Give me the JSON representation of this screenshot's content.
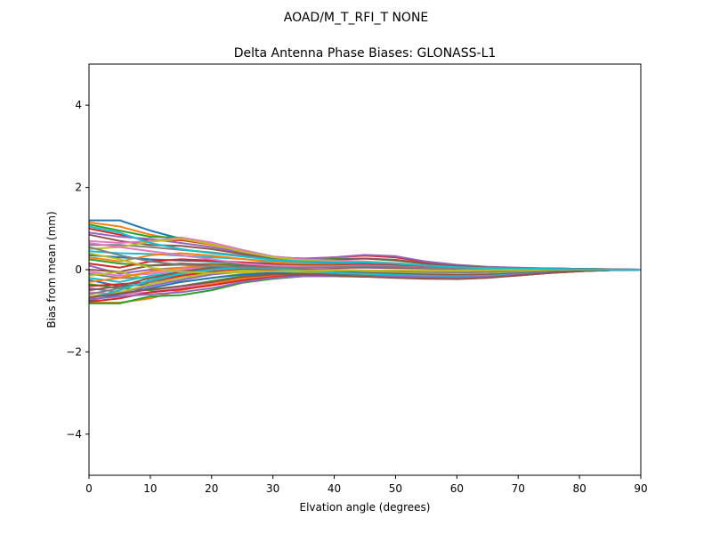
{
  "suptitle": "AOAD/M_T_RFI_T  NONE",
  "chart_data": {
    "type": "line",
    "title": "Delta Antenna Phase Biases: GLONASS-L1",
    "xlabel": "Elvation angle (degrees)",
    "ylabel": "Bias from mean (mm)",
    "xlim": [
      0,
      90
    ],
    "ylim": [
      -5,
      5
    ],
    "xticks": [
      0,
      10,
      20,
      30,
      40,
      50,
      60,
      70,
      80,
      90
    ],
    "yticks": [
      -4,
      -2,
      0,
      2,
      4
    ],
    "xtick_labels": [
      "0",
      "10",
      "20",
      "30",
      "40",
      "50",
      "60",
      "70",
      "80",
      "90"
    ],
    "ytick_labels": [
      "−4",
      "−2",
      "0",
      "2",
      "4"
    ],
    "grid": false,
    "x": [
      0,
      5,
      10,
      15,
      20,
      25,
      30,
      35,
      40,
      45,
      50,
      55,
      60,
      65,
      70,
      75,
      80,
      85,
      90
    ],
    "colors": [
      "#1f77b4",
      "#ff7f0e",
      "#2ca02c",
      "#d62728",
      "#9467bd",
      "#8c564b",
      "#e377c2",
      "#7f7f7f",
      "#bcbd22",
      "#17becf"
    ],
    "series": [
      {
        "values": [
          1.2,
          1.2,
          0.95,
          0.75,
          0.62,
          0.45,
          0.3,
          0.22,
          0.18,
          0.16,
          0.12,
          0.08,
          0.05,
          0.03,
          0.02,
          0.01,
          0.01,
          0.0,
          0.0
        ]
      },
      {
        "values": [
          1.15,
          1.05,
          0.85,
          0.72,
          0.6,
          0.45,
          0.3,
          0.24,
          0.2,
          0.18,
          0.14,
          0.09,
          0.06,
          0.04,
          0.03,
          0.02,
          0.01,
          0.0,
          0.0
        ]
      },
      {
        "values": [
          1.1,
          0.95,
          0.8,
          0.78,
          0.65,
          0.48,
          0.32,
          0.26,
          0.26,
          0.27,
          0.22,
          0.14,
          0.08,
          0.05,
          0.04,
          0.03,
          0.02,
          0.01,
          0.0
        ]
      },
      {
        "values": [
          1.0,
          0.85,
          0.7,
          0.72,
          0.62,
          0.46,
          0.3,
          0.27,
          0.3,
          0.34,
          0.3,
          0.18,
          0.1,
          0.06,
          0.04,
          0.03,
          0.02,
          0.01,
          0.0
        ]
      },
      {
        "values": [
          0.9,
          0.8,
          0.75,
          0.65,
          0.55,
          0.42,
          0.28,
          0.26,
          0.3,
          0.36,
          0.33,
          0.2,
          0.12,
          0.07,
          0.05,
          0.03,
          0.02,
          0.01,
          0.0
        ]
      },
      {
        "values": [
          0.85,
          0.7,
          0.6,
          0.58,
          0.5,
          0.38,
          0.26,
          0.22,
          0.24,
          0.27,
          0.24,
          0.15,
          0.09,
          0.05,
          0.04,
          0.03,
          0.02,
          0.01,
          0.0
        ]
      },
      {
        "values": [
          0.7,
          0.65,
          0.7,
          0.78,
          0.66,
          0.48,
          0.32,
          0.25,
          0.22,
          0.2,
          0.16,
          0.1,
          0.06,
          0.04,
          0.03,
          0.02,
          0.01,
          0.0,
          0.0
        ]
      },
      {
        "values": [
          0.6,
          0.6,
          0.55,
          0.48,
          0.42,
          0.34,
          0.24,
          0.2,
          0.18,
          0.17,
          0.14,
          0.09,
          0.06,
          0.04,
          0.03,
          0.02,
          0.01,
          0.0,
          0.0
        ]
      },
      {
        "values": [
          0.5,
          0.55,
          0.68,
          0.75,
          0.62,
          0.44,
          0.3,
          0.22,
          0.2,
          0.19,
          0.15,
          0.09,
          0.05,
          0.03,
          0.02,
          0.01,
          0.01,
          0.0,
          0.0
        ]
      },
      {
        "values": [
          0.45,
          0.4,
          0.38,
          0.34,
          0.3,
          0.26,
          0.2,
          0.18,
          0.16,
          0.15,
          0.12,
          0.08,
          0.05,
          0.03,
          0.02,
          0.01,
          0.01,
          0.0,
          0.0
        ]
      },
      {
        "values": [
          0.35,
          0.3,
          0.25,
          0.22,
          0.2,
          0.18,
          0.15,
          0.14,
          0.14,
          0.15,
          0.13,
          0.09,
          0.06,
          0.04,
          0.03,
          0.02,
          0.01,
          0.0,
          0.0
        ]
      },
      {
        "values": [
          0.3,
          0.2,
          0.35,
          0.4,
          0.34,
          0.26,
          0.18,
          0.14,
          0.12,
          0.12,
          0.1,
          0.07,
          0.05,
          0.03,
          0.02,
          0.01,
          0.01,
          0.0,
          0.0
        ]
      },
      {
        "values": [
          0.25,
          0.15,
          0.1,
          0.12,
          0.14,
          0.14,
          0.12,
          0.11,
          0.1,
          0.1,
          0.08,
          0.05,
          0.03,
          0.02,
          0.02,
          0.01,
          0.01,
          0.0,
          0.0
        ]
      },
      {
        "values": [
          0.15,
          0.05,
          0.2,
          0.25,
          0.22,
          0.18,
          0.12,
          0.1,
          0.1,
          0.12,
          0.1,
          0.06,
          0.04,
          0.03,
          0.02,
          0.01,
          0.0,
          0.0,
          0.0
        ]
      },
      {
        "values": [
          0.1,
          -0.1,
          0.0,
          0.05,
          0.08,
          0.1,
          0.08,
          0.06,
          0.05,
          0.05,
          0.04,
          0.03,
          0.02,
          0.01,
          0.01,
          0.0,
          0.0,
          0.0,
          0.0
        ]
      },
      {
        "values": [
          0.0,
          -0.05,
          0.1,
          0.15,
          0.12,
          0.08,
          0.05,
          0.04,
          0.04,
          0.06,
          0.05,
          0.03,
          0.02,
          0.01,
          0.01,
          0.0,
          0.0,
          0.0,
          0.0
        ]
      },
      {
        "values": [
          -0.05,
          -0.15,
          -0.1,
          0.0,
          0.05,
          0.06,
          0.04,
          0.02,
          0.0,
          -0.02,
          -0.03,
          -0.03,
          -0.03,
          -0.02,
          -0.01,
          -0.01,
          0.0,
          0.0,
          0.0
        ]
      },
      {
        "values": [
          -0.1,
          -0.2,
          -0.2,
          -0.1,
          0.0,
          0.04,
          0.02,
          0.0,
          -0.02,
          -0.04,
          -0.06,
          -0.07,
          -0.07,
          -0.06,
          -0.04,
          -0.02,
          -0.01,
          0.0,
          0.0
        ]
      },
      {
        "values": [
          -0.15,
          -0.05,
          -0.25,
          -0.3,
          -0.2,
          -0.1,
          -0.05,
          -0.04,
          -0.05,
          -0.06,
          -0.08,
          -0.1,
          -0.11,
          -0.1,
          -0.07,
          -0.04,
          -0.02,
          -0.01,
          0.0
        ]
      },
      {
        "values": [
          -0.2,
          -0.3,
          -0.15,
          -0.05,
          0.02,
          0.05,
          0.02,
          -0.02,
          -0.05,
          -0.07,
          -0.1,
          -0.12,
          -0.13,
          -0.12,
          -0.08,
          -0.05,
          -0.02,
          -0.01,
          0.0
        ]
      },
      {
        "values": [
          -0.25,
          -0.4,
          -0.35,
          -0.2,
          -0.1,
          -0.05,
          -0.05,
          -0.08,
          -0.1,
          -0.12,
          -0.14,
          -0.16,
          -0.17,
          -0.15,
          -0.11,
          -0.06,
          -0.03,
          -0.01,
          0.0
        ]
      },
      {
        "values": [
          -0.3,
          -0.2,
          -0.05,
          0.05,
          0.1,
          0.08,
          0.02,
          -0.04,
          -0.08,
          -0.1,
          -0.12,
          -0.14,
          -0.15,
          -0.14,
          -0.1,
          -0.06,
          -0.03,
          -0.01,
          0.0
        ]
      },
      {
        "values": [
          -0.35,
          -0.45,
          -0.5,
          -0.4,
          -0.28,
          -0.16,
          -0.1,
          -0.1,
          -0.12,
          -0.14,
          -0.16,
          -0.18,
          -0.19,
          -0.17,
          -0.12,
          -0.07,
          -0.03,
          -0.01,
          0.0
        ]
      },
      {
        "values": [
          -0.4,
          -0.35,
          -0.3,
          -0.15,
          -0.05,
          0.0,
          -0.02,
          -0.06,
          -0.09,
          -0.11,
          -0.13,
          -0.15,
          -0.16,
          -0.15,
          -0.11,
          -0.06,
          -0.03,
          -0.01,
          0.0
        ]
      },
      {
        "values": [
          -0.45,
          -0.55,
          -0.4,
          -0.25,
          -0.12,
          -0.05,
          -0.06,
          -0.1,
          -0.13,
          -0.15,
          -0.17,
          -0.19,
          -0.2,
          -0.18,
          -0.13,
          -0.07,
          -0.03,
          -0.01,
          0.0
        ]
      },
      {
        "values": [
          -0.5,
          -0.4,
          -0.2,
          -0.05,
          0.05,
          0.1,
          0.06,
          0.0,
          -0.04,
          -0.08,
          -0.1,
          -0.12,
          -0.13,
          -0.12,
          -0.09,
          -0.05,
          -0.02,
          -0.01,
          0.0
        ]
      },
      {
        "values": [
          -0.55,
          -0.6,
          -0.55,
          -0.45,
          -0.32,
          -0.2,
          -0.12,
          -0.12,
          -0.14,
          -0.16,
          -0.18,
          -0.2,
          -0.21,
          -0.19,
          -0.14,
          -0.08,
          -0.04,
          -0.01,
          0.0
        ]
      },
      {
        "values": [
          -0.6,
          -0.45,
          -0.3,
          -0.1,
          0.0,
          0.05,
          0.02,
          -0.04,
          -0.08,
          -0.11,
          -0.14,
          -0.16,
          -0.17,
          -0.16,
          -0.12,
          -0.07,
          -0.03,
          -0.01,
          0.0
        ]
      },
      {
        "values": [
          -0.65,
          -0.55,
          -0.35,
          -0.2,
          -0.08,
          -0.02,
          -0.04,
          -0.08,
          -0.11,
          -0.14,
          -0.16,
          -0.18,
          -0.19,
          -0.17,
          -0.13,
          -0.07,
          -0.03,
          -0.01,
          0.0
        ]
      },
      {
        "values": [
          -0.7,
          -0.5,
          -0.25,
          -0.1,
          0.0,
          0.05,
          0.03,
          -0.02,
          -0.07,
          -0.1,
          -0.13,
          -0.15,
          -0.16,
          -0.15,
          -0.11,
          -0.06,
          -0.03,
          -0.01,
          0.0
        ]
      },
      {
        "values": [
          -0.75,
          -0.6,
          -0.45,
          -0.3,
          -0.2,
          -0.12,
          -0.08,
          -0.1,
          -0.12,
          -0.15,
          -0.17,
          -0.19,
          -0.2,
          -0.18,
          -0.13,
          -0.07,
          -0.03,
          -0.01,
          0.0
        ]
      },
      {
        "values": [
          -0.8,
          -0.8,
          -0.7,
          -0.5,
          -0.35,
          -0.22,
          -0.14,
          -0.12,
          -0.14,
          -0.16,
          -0.18,
          -0.2,
          -0.21,
          -0.19,
          -0.14,
          -0.08,
          -0.04,
          -0.01,
          0.0
        ]
      },
      {
        "values": [
          -0.82,
          -0.82,
          -0.65,
          -0.62,
          -0.5,
          -0.32,
          -0.22,
          -0.16,
          -0.16,
          -0.17,
          -0.18,
          -0.19,
          -0.2,
          -0.18,
          -0.13,
          -0.07,
          -0.03,
          -0.01,
          0.0
        ]
      },
      {
        "values": [
          -0.78,
          -0.7,
          -0.55,
          -0.48,
          -0.38,
          -0.26,
          -0.18,
          -0.15,
          -0.15,
          -0.17,
          -0.19,
          -0.21,
          -0.22,
          -0.19,
          -0.14,
          -0.08,
          -0.04,
          -0.01,
          0.0
        ]
      },
      {
        "values": [
          -0.72,
          -0.65,
          -0.6,
          -0.55,
          -0.45,
          -0.3,
          -0.2,
          -0.16,
          -0.15,
          -0.16,
          -0.17,
          -0.18,
          -0.19,
          -0.17,
          -0.12,
          -0.07,
          -0.03,
          -0.01,
          0.0
        ]
      },
      {
        "values": [
          -0.68,
          -0.58,
          -0.48,
          -0.4,
          -0.3,
          -0.18,
          -0.12,
          -0.12,
          -0.14,
          -0.17,
          -0.2,
          -0.22,
          -0.23,
          -0.2,
          -0.14,
          -0.08,
          -0.04,
          -0.01,
          0.0
        ]
      },
      {
        "values": [
          0.65,
          0.55,
          0.45,
          0.35,
          0.25,
          0.15,
          0.1,
          0.08,
          0.08,
          0.1,
          0.08,
          0.05,
          0.03,
          0.02,
          0.01,
          0.01,
          0.0,
          0.0,
          0.0
        ]
      },
      {
        "values": [
          0.55,
          0.35,
          0.2,
          0.12,
          0.08,
          0.06,
          0.05,
          0.05,
          0.06,
          0.08,
          0.07,
          0.05,
          0.03,
          0.02,
          0.01,
          0.01,
          0.0,
          0.0,
          0.0
        ]
      },
      {
        "values": [
          0.4,
          0.25,
          0.05,
          -0.05,
          -0.08,
          -0.06,
          -0.04,
          -0.03,
          -0.02,
          -0.02,
          -0.02,
          -0.02,
          -0.02,
          -0.01,
          -0.01,
          0.0,
          0.0,
          0.0,
          0.0
        ]
      },
      {
        "values": [
          1.05,
          0.9,
          0.65,
          0.5,
          0.4,
          0.32,
          0.24,
          0.2,
          0.18,
          0.18,
          0.15,
          0.1,
          0.06,
          0.04,
          0.03,
          0.02,
          0.01,
          0.0,
          0.0
        ]
      }
    ]
  }
}
